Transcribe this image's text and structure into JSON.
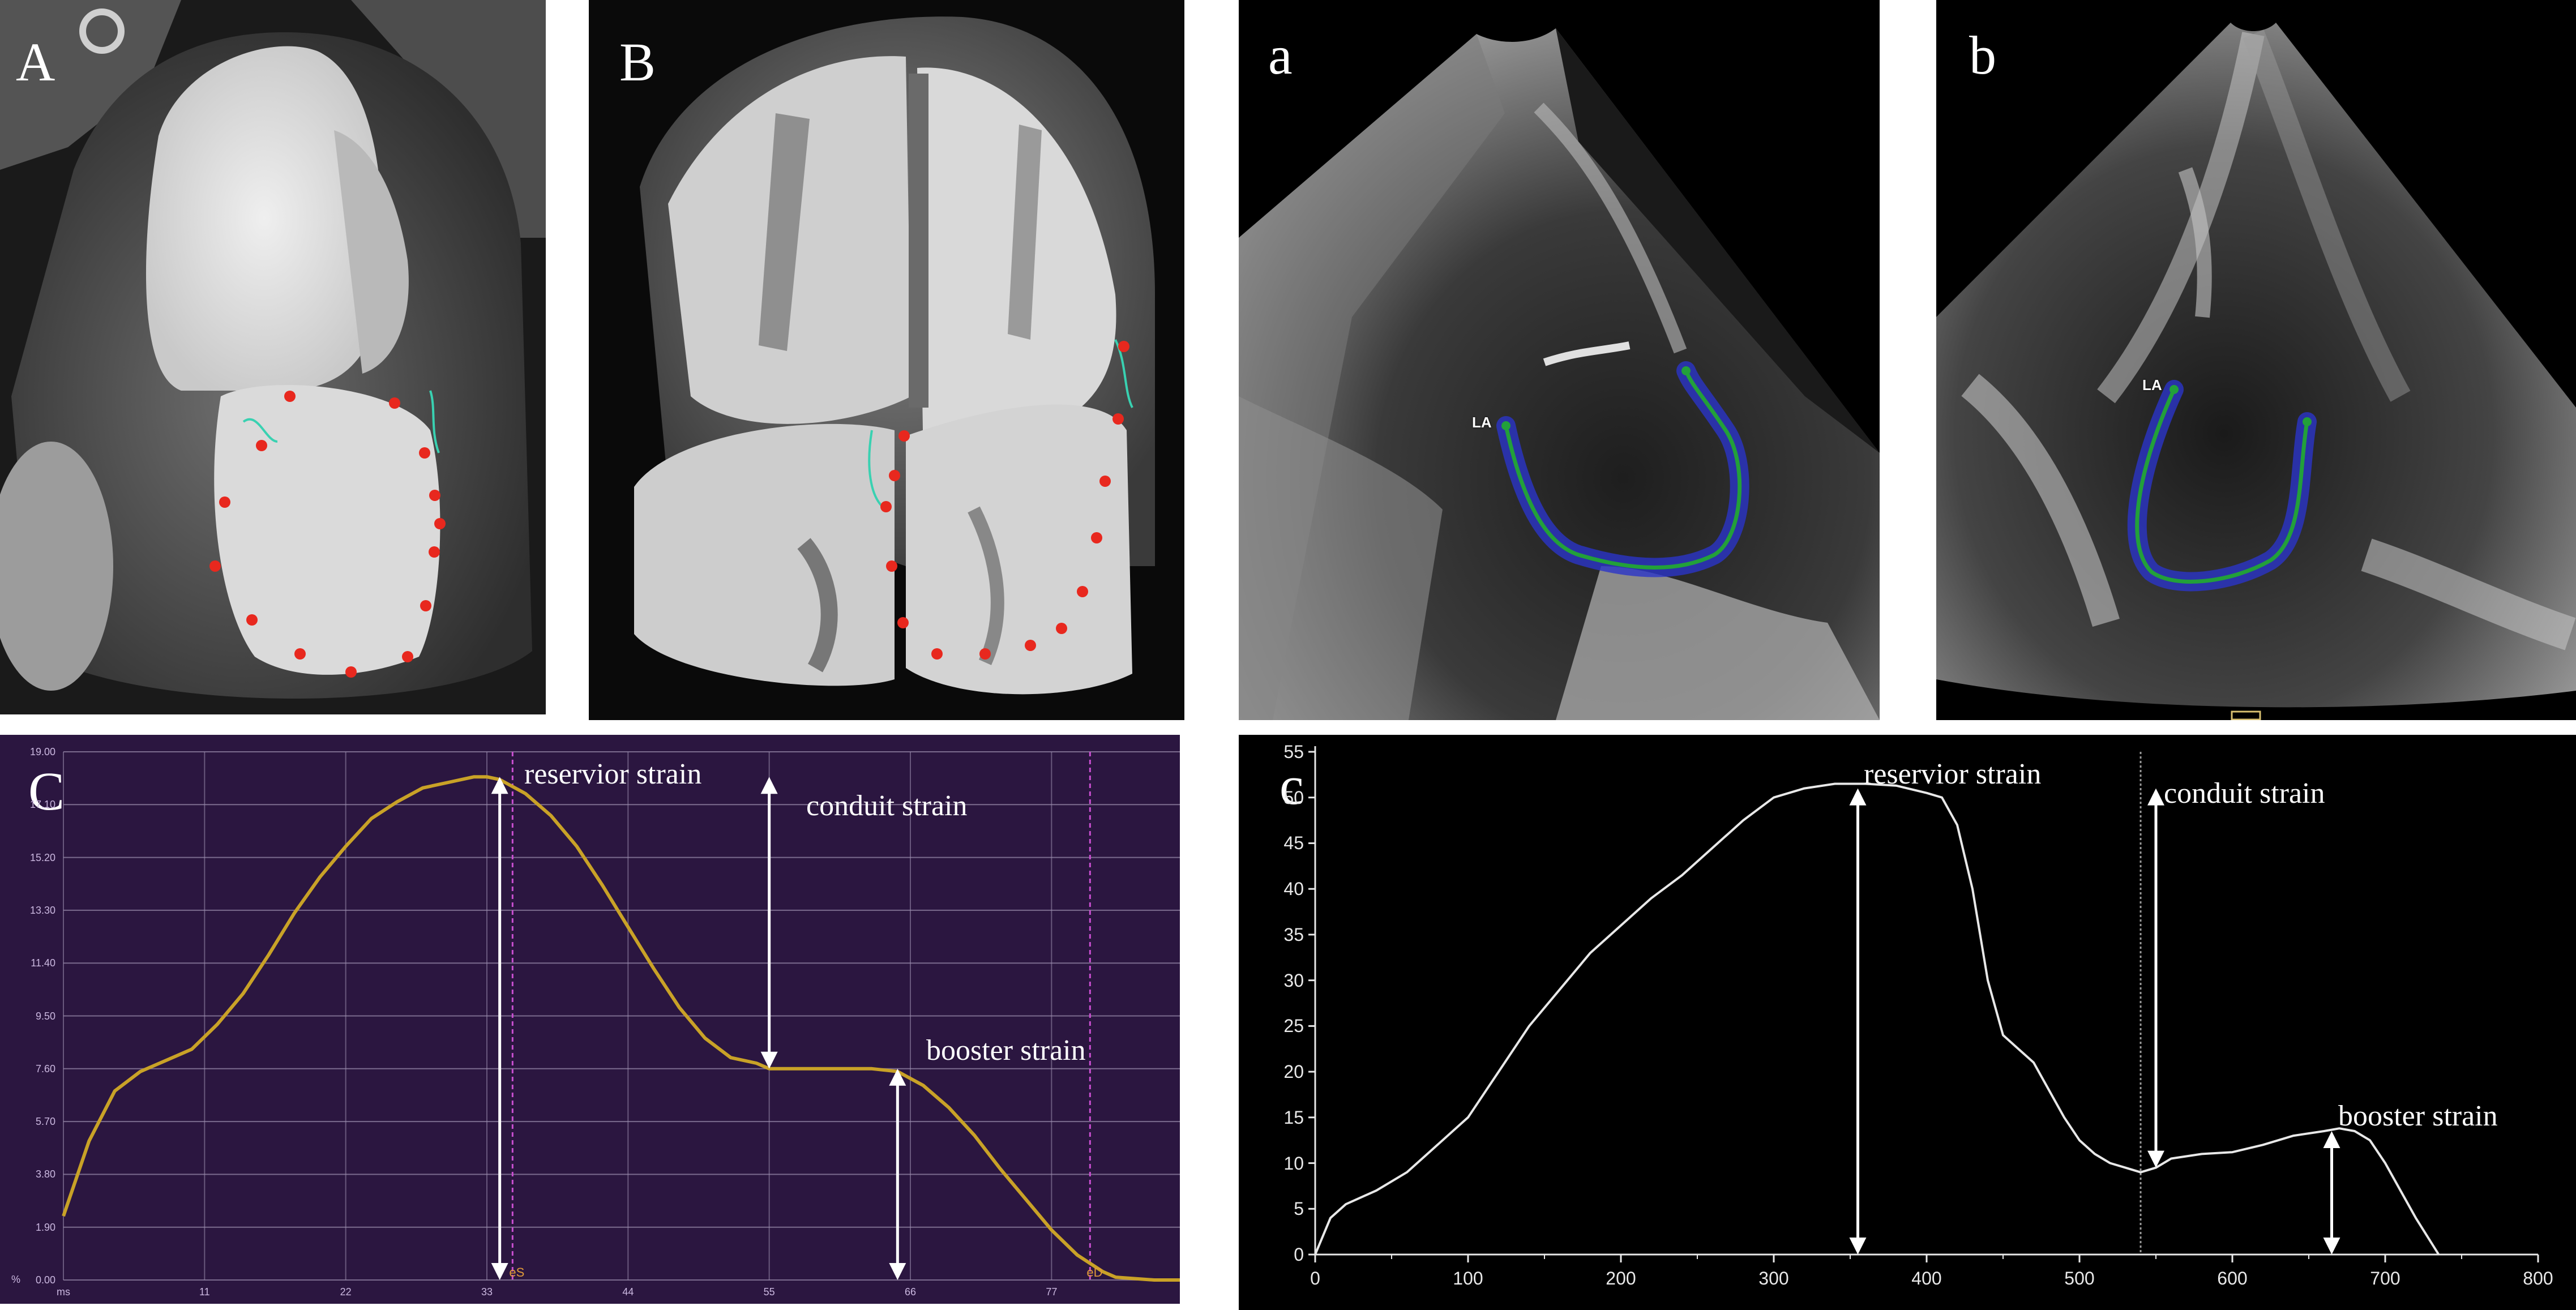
{
  "panels": {
    "ct_A": {
      "letter": "A"
    },
    "ct_B": {
      "letter": "B"
    },
    "echo_a": {
      "letter": "a",
      "tag": "LA"
    },
    "echo_b": {
      "letter": "b",
      "tag": "LA"
    }
  },
  "panel_C": {
    "letter": "C",
    "unit": "%",
    "xunit": "ms",
    "annotations": {
      "reservoir": "reservior strain",
      "conduit": "conduit strain",
      "booster": "booster strain"
    },
    "markers": [
      "eS",
      "eD"
    ]
  },
  "panel_c": {
    "letter": "c",
    "annotations": {
      "reservoir": "reservior strain",
      "conduit": "conduit strain",
      "booster": "booster strain"
    }
  },
  "colors": {
    "ct_background": "#000000",
    "panel_C_background": "#2b1640",
    "panel_C_curve": "#c9a227",
    "panel_C_grid": "#9d8fb0",
    "panel_C_marker": "#c94fd1",
    "panel_c_background": "#000000",
    "panel_c_curve": "#e8e8e8",
    "contrast_marker": "#e8281e",
    "tracking_curve": "#22a03a",
    "tracking_glow": "#2a35c8"
  },
  "chart_data": [
    {
      "type": "line",
      "title": "",
      "xlabel": "ms",
      "ylabel": "%",
      "x_ticks": [
        0,
        11,
        22,
        33,
        44,
        55,
        66,
        77
      ],
      "x_tick_labels": [
        "ms",
        "11",
        "22",
        "33",
        "44",
        "55",
        "66",
        "77"
      ],
      "y_ticks": [
        0,
        1.9,
        3.8,
        5.7,
        7.6,
        9.5,
        11.4,
        13.3,
        15.2,
        17.1,
        19.0
      ],
      "y_tick_labels": [
        "0.00",
        "1.90",
        "3.80",
        "5.70",
        "7.60",
        "9.50",
        "11.40",
        "13.30",
        "15.20",
        "17.10",
        "19.00"
      ],
      "xlim": [
        0,
        87
      ],
      "ylim": [
        0,
        19
      ],
      "grid": true,
      "series": [
        {
          "x": [
            0,
            2,
            4,
            6,
            8,
            10,
            12,
            14,
            16,
            18,
            20,
            22,
            24,
            26,
            28,
            30,
            32,
            33,
            34,
            36,
            38,
            40,
            42,
            44,
            46,
            48,
            50,
            52,
            54,
            55,
            57,
            60,
            63,
            65,
            67,
            69,
            71,
            73,
            75,
            77,
            79,
            81,
            82,
            85,
            87
          ],
          "y": [
            2.3,
            5.0,
            6.8,
            7.5,
            7.9,
            8.3,
            9.2,
            10.3,
            11.7,
            13.2,
            14.5,
            15.6,
            16.6,
            17.2,
            17.7,
            17.9,
            18.1,
            18.1,
            18.0,
            17.5,
            16.7,
            15.6,
            14.2,
            12.7,
            11.2,
            9.8,
            8.7,
            8.0,
            7.8,
            7.6,
            7.6,
            7.6,
            7.6,
            7.5,
            7.0,
            6.2,
            5.2,
            4.0,
            2.9,
            1.8,
            0.9,
            0.3,
            0.1,
            0.0,
            0.0
          ]
        }
      ],
      "annotations": [
        {
          "text": "reservior strain",
          "x": 34,
          "y_from": 0,
          "y_to": 18.1
        },
        {
          "text": "conduit strain",
          "x": 55,
          "y_from": 7.6,
          "y_to": 18.1
        },
        {
          "text": "booster strain",
          "x": 65,
          "y_from": 0,
          "y_to": 7.6
        }
      ],
      "vertical_markers": [
        {
          "label": "eS",
          "x": 35
        },
        {
          "label": "eD",
          "x": 80
        }
      ]
    },
    {
      "type": "line",
      "title": "",
      "xlabel": "",
      "ylabel": "",
      "x_ticks": [
        0,
        100,
        200,
        300,
        400,
        500,
        600,
        700,
        800
      ],
      "y_ticks": [
        0,
        5,
        10,
        15,
        20,
        25,
        30,
        35,
        40,
        45,
        50,
        55
      ],
      "xlim": [
        0,
        800
      ],
      "ylim": [
        0,
        55
      ],
      "grid": false,
      "series": [
        {
          "x": [
            0,
            10,
            20,
            40,
            60,
            80,
            100,
            120,
            140,
            160,
            180,
            200,
            220,
            240,
            260,
            280,
            300,
            320,
            340,
            360,
            380,
            400,
            410,
            420,
            430,
            440,
            450,
            460,
            470,
            480,
            490,
            500,
            510,
            520,
            530,
            540,
            550,
            560,
            580,
            600,
            620,
            640,
            660,
            670,
            680,
            690,
            700,
            710,
            720,
            735
          ],
          "y": [
            0,
            4,
            5.5,
            7,
            9,
            12,
            15,
            20,
            25,
            29,
            33,
            36,
            39,
            41.5,
            44.5,
            47.5,
            50,
            51,
            51.5,
            51.5,
            51.3,
            50.5,
            50,
            47,
            40,
            30,
            24,
            22.5,
            21,
            18,
            15,
            12.5,
            11,
            10,
            9.5,
            9,
            9.5,
            10.5,
            11,
            11.2,
            12,
            13,
            13.5,
            13.8,
            13.5,
            12.5,
            10,
            7,
            4,
            0
          ]
        }
      ],
      "annotations": [
        {
          "text": "reservior strain",
          "x": 355,
          "y_from": 0,
          "y_to": 51
        },
        {
          "text": "conduit strain",
          "x": 550,
          "y_from": 9.5,
          "y_to": 51
        },
        {
          "text": "booster strain",
          "x": 665,
          "y_from": 0,
          "y_to": 13.5
        }
      ],
      "vertical_markers": [
        {
          "label": "",
          "x": 540
        }
      ]
    }
  ]
}
